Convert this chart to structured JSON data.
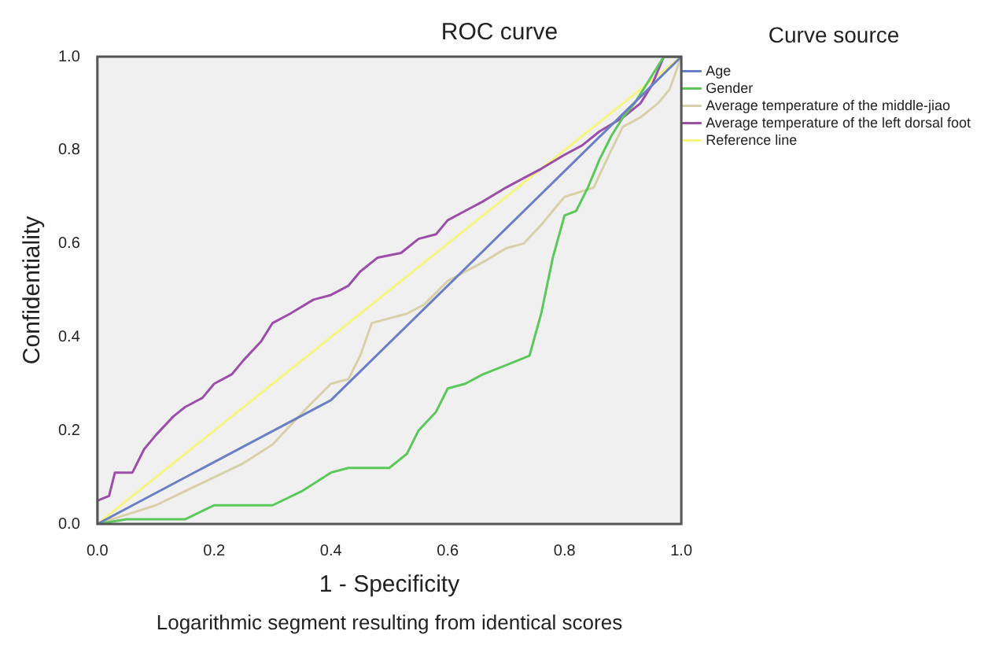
{
  "chart_data": {
    "type": "line",
    "title": "ROC curve",
    "xlabel": "1 - Specificity",
    "ylabel": "Confidentiality",
    "legend_title": "Curve source",
    "legend": "top right",
    "grid": false,
    "marker": "none",
    "line_style": "solid",
    "annotations": [
      "Logarithmic segment resulting from identical scores"
    ],
    "xlim": [
      0,
      1
    ],
    "ylim": [
      0,
      1
    ],
    "xticks": [
      {
        "value": 0,
        "label": "0.0"
      },
      {
        "value": 0.2,
        "label": "0.2"
      },
      {
        "value": 0.4,
        "label": "0.4"
      },
      {
        "value": 0.6,
        "label": "0.6"
      },
      {
        "value": 0.8,
        "label": "0.8"
      },
      {
        "value": 1,
        "label": "1.0"
      }
    ],
    "yticks": [
      {
        "value": 0,
        "label": "0.0"
      },
      {
        "value": 0.2,
        "label": "0.2"
      },
      {
        "value": 0.4,
        "label": "0.4"
      },
      {
        "value": 0.6,
        "label": "0.6"
      },
      {
        "value": 0.8,
        "label": "0.8"
      },
      {
        "value": 1,
        "label": "1.0"
      }
    ],
    "series": [
      {
        "name": "Age",
        "color": "#6b7fc4",
        "x": [
          0,
          0.4,
          1
        ],
        "values": [
          0,
          0.265,
          1
        ]
      },
      {
        "name": "Gender",
        "color": "#5cc85c",
        "x": [
          0,
          0.05,
          0.15,
          0.2,
          0.3,
          0.35,
          0.4,
          0.43,
          0.5,
          0.53,
          0.55,
          0.58,
          0.6,
          0.63,
          0.66,
          0.7,
          0.74,
          0.76,
          0.78,
          0.8,
          0.82,
          0.84,
          0.86,
          0.88,
          0.9,
          0.92,
          0.95,
          0.97,
          1
        ],
        "values": [
          0,
          0.01,
          0.01,
          0.04,
          0.04,
          0.07,
          0.11,
          0.12,
          0.12,
          0.15,
          0.2,
          0.24,
          0.29,
          0.3,
          0.32,
          0.34,
          0.36,
          0.45,
          0.57,
          0.66,
          0.67,
          0.72,
          0.78,
          0.83,
          0.87,
          0.9,
          0.96,
          1,
          1
        ]
      },
      {
        "name": "Average temperature of the middle-jiao",
        "color": "#d8d0a8",
        "x": [
          0,
          0.05,
          0.1,
          0.15,
          0.2,
          0.25,
          0.3,
          0.33,
          0.36,
          0.4,
          0.43,
          0.45,
          0.47,
          0.5,
          0.53,
          0.56,
          0.6,
          0.63,
          0.66,
          0.7,
          0.73,
          0.76,
          0.78,
          0.8,
          0.85,
          0.88,
          0.9,
          0.93,
          0.96,
          0.98,
          1
        ],
        "values": [
          0,
          0.02,
          0.04,
          0.07,
          0.1,
          0.13,
          0.17,
          0.21,
          0.25,
          0.3,
          0.31,
          0.36,
          0.43,
          0.44,
          0.45,
          0.47,
          0.52,
          0.54,
          0.56,
          0.59,
          0.6,
          0.64,
          0.67,
          0.7,
          0.72,
          0.8,
          0.85,
          0.87,
          0.9,
          0.93,
          1
        ]
      },
      {
        "name": "Average temperature of the left dorsal foot",
        "color": "#9b4fa8",
        "x": [
          0,
          0,
          0.02,
          0.03,
          0.06,
          0.08,
          0.1,
          0.13,
          0.15,
          0.18,
          0.2,
          0.23,
          0.25,
          0.28,
          0.3,
          0.33,
          0.37,
          0.4,
          0.43,
          0.45,
          0.48,
          0.52,
          0.55,
          0.58,
          0.6,
          0.63,
          0.66,
          0.7,
          0.73,
          0.76,
          0.8,
          0.83,
          0.86,
          0.9,
          0.93,
          0.95,
          0.97,
          1
        ],
        "values": [
          0,
          0.05,
          0.06,
          0.11,
          0.11,
          0.16,
          0.19,
          0.23,
          0.25,
          0.27,
          0.3,
          0.32,
          0.35,
          0.39,
          0.43,
          0.45,
          0.48,
          0.49,
          0.51,
          0.54,
          0.57,
          0.58,
          0.61,
          0.62,
          0.65,
          0.67,
          0.69,
          0.72,
          0.74,
          0.76,
          0.79,
          0.81,
          0.84,
          0.87,
          0.9,
          0.94,
          1,
          1
        ]
      },
      {
        "name": "Reference line",
        "color": "#f5f580",
        "x": [
          0,
          1
        ],
        "values": [
          0,
          1
        ]
      }
    ]
  }
}
